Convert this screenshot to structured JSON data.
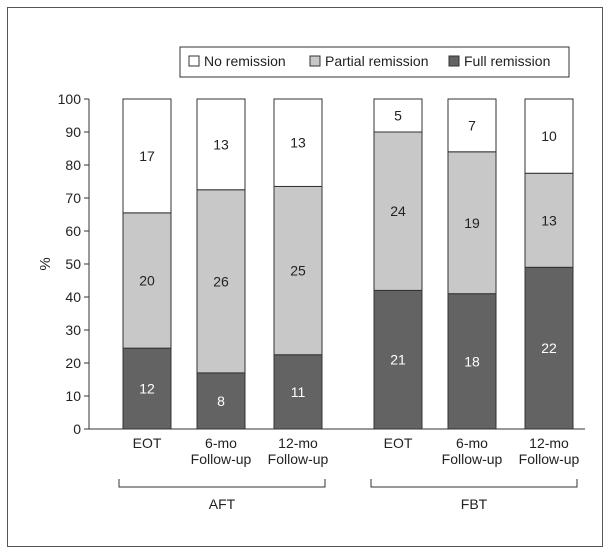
{
  "chart_data": {
    "type": "bar",
    "stacked": true,
    "ylabel": "%",
    "ylim": [
      0,
      100
    ],
    "yticks": [
      0,
      10,
      20,
      30,
      40,
      50,
      60,
      70,
      80,
      90,
      100
    ],
    "legend_position": "top-right",
    "groups": [
      {
        "label": "AFT",
        "categories": [
          "EOT",
          "6-mo Follow-up",
          "12-mo Follow-up"
        ]
      },
      {
        "label": "FBT",
        "categories": [
          "EOT",
          "6-mo Follow-up",
          "12-mo Follow-up"
        ]
      }
    ],
    "series": [
      {
        "name": "Full remission",
        "color": "#636363",
        "values": [
          24.5,
          17.0,
          22.5,
          42.0,
          41.0,
          49.0
        ],
        "labels": [
          "12",
          "8",
          "11",
          "21",
          "18",
          "22"
        ]
      },
      {
        "name": "Partial remission",
        "color": "#c8c8c8",
        "values": [
          41.0,
          55.5,
          51.0,
          48.0,
          43.0,
          28.5
        ],
        "labels": [
          "20",
          "26",
          "25",
          "24",
          "19",
          "13"
        ]
      },
      {
        "name": "No remission",
        "color": "#ffffff",
        "values": [
          34.5,
          27.5,
          26.5,
          10.0,
          16.0,
          22.5
        ],
        "labels": [
          "17",
          "13",
          "13",
          "5",
          "7",
          "10"
        ]
      }
    ],
    "legend": [
      "No remission",
      "Partial remission",
      "Full remission"
    ]
  }
}
